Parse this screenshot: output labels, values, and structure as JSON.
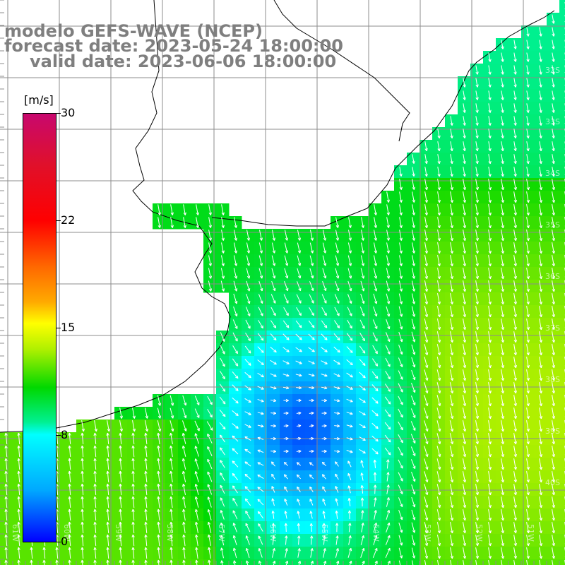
{
  "title": {
    "line1": "modelo GEFS-WAVE (NCEP)",
    "line2": "forecast date: 2023-05-24 18:00:00",
    "line3": "valid date: 2023-06-06 18:00:00"
  },
  "colorbar": {
    "unit": "[m/s]",
    "ticks": [
      "30",
      "22",
      "15",
      "8",
      "0"
    ]
  },
  "lon_labels": [
    "61W",
    "60W",
    "59W",
    "58W",
    "57W",
    "56W",
    "55W",
    "54W",
    "53W",
    "52W",
    "51W"
  ],
  "lat_labels": [
    "32S",
    "33S",
    "34S",
    "35S",
    "36S",
    "37S",
    "38S",
    "39S",
    "40S"
  ],
  "colors": {
    "land": "#ffffff",
    "grid": "#8c8c8c",
    "coast": "#000000",
    "arrows": "#ffffff",
    "title": "#7f7f7f"
  }
}
